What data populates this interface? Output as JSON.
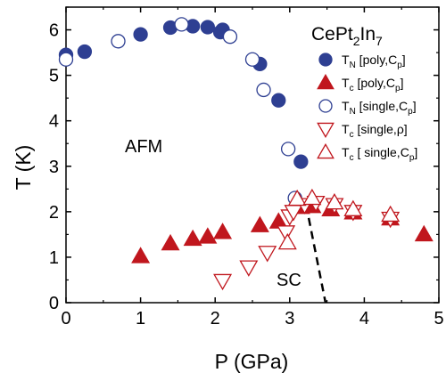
{
  "chart_data": {
    "type": "scatter",
    "title_parts": {
      "base": "CePt",
      "sub1": "2",
      "mid": "In",
      "sub2": "7"
    },
    "xlabel": "P (GPa)",
    "ylabel": "T (K)",
    "xlim": [
      0,
      5
    ],
    "ylim": [
      0,
      6.5
    ],
    "xticks": [
      0,
      1,
      2,
      3,
      4,
      5
    ],
    "yticks": [
      0,
      1,
      2,
      3,
      4,
      5,
      6
    ],
    "xtick_labels": [
      "0",
      "1",
      "2",
      "3",
      "4",
      "5"
    ],
    "ytick_labels": [
      "0",
      "1",
      "2",
      "3",
      "4",
      "5",
      "6"
    ],
    "annotations": [
      {
        "text": "AFM",
        "x": 0.9,
        "y": 3.9
      },
      {
        "text": "SC",
        "x": 3.15,
        "y": 0.55
      }
    ],
    "dashed_line": [
      [
        3.22,
        2.15
      ],
      [
        3.48,
        0.0
      ]
    ],
    "colors": {
      "blue": "#2e3f92",
      "red": "#c0161d"
    },
    "legend_position": "top-right",
    "series": [
      {
        "name": "T",
        "name_sub": "N",
        "name_rest": " [poly,C",
        "name_rest_sub": "p",
        "name_end": "]",
        "marker": "circle",
        "filled": true,
        "color": "#2e3f92",
        "points": [
          [
            0.0,
            5.45
          ],
          [
            0.25,
            5.52
          ],
          [
            1.0,
            5.9
          ],
          [
            1.4,
            6.05
          ],
          [
            1.7,
            6.08
          ],
          [
            1.9,
            6.06
          ],
          [
            2.07,
            5.95
          ],
          [
            2.1,
            6.0
          ],
          [
            2.6,
            5.25
          ],
          [
            2.85,
            4.45
          ],
          [
            3.15,
            3.1
          ]
        ]
      },
      {
        "name": "T",
        "name_sub": "c",
        "name_rest": " [poly,C",
        "name_rest_sub": "p",
        "name_end": "]",
        "marker": "triangle-up",
        "filled": true,
        "color": "#c0161d",
        "points": [
          [
            1.0,
            1.02
          ],
          [
            1.4,
            1.3
          ],
          [
            1.7,
            1.4
          ],
          [
            1.9,
            1.45
          ],
          [
            2.1,
            1.55
          ],
          [
            2.6,
            1.7
          ],
          [
            2.85,
            1.78
          ],
          [
            3.15,
            2.1
          ],
          [
            3.3,
            2.12
          ],
          [
            3.55,
            2.05
          ],
          [
            3.85,
            1.98
          ],
          [
            4.35,
            1.85
          ],
          [
            4.8,
            1.5
          ]
        ]
      },
      {
        "name": "T",
        "name_sub": "N",
        "name_rest": " [single,C",
        "name_rest_sub": "p",
        "name_end": "]",
        "marker": "circle",
        "filled": false,
        "color": "#2e3f92",
        "points": [
          [
            0.0,
            5.35
          ],
          [
            0.7,
            5.75
          ],
          [
            1.55,
            6.12
          ],
          [
            2.2,
            5.85
          ],
          [
            2.5,
            5.35
          ],
          [
            2.65,
            4.68
          ],
          [
            2.98,
            3.38
          ],
          [
            3.07,
            2.3
          ]
        ]
      },
      {
        "name": "T",
        "name_sub": "c",
        "name_rest": " [single,",
        "name_rest_sub": "",
        "name_end": "ρ]",
        "marker": "triangle-down",
        "filled": false,
        "color": "#c0161d",
        "points": [
          [
            2.1,
            0.48
          ],
          [
            2.45,
            0.78
          ],
          [
            2.7,
            1.1
          ],
          [
            2.95,
            1.55
          ],
          [
            3.0,
            1.9
          ],
          [
            3.05,
            2.0
          ],
          [
            3.2,
            2.15
          ],
          [
            3.35,
            2.2
          ],
          [
            3.6,
            2.15
          ],
          [
            3.85,
            2.0
          ],
          [
            4.35,
            1.85
          ]
        ]
      },
      {
        "name": "T",
        "name_sub": "c",
        "name_rest": " [ single,C",
        "name_rest_sub": "p",
        "name_end": "]",
        "marker": "triangle-up",
        "filled": false,
        "color": "#c0161d",
        "points": [
          [
            2.97,
            1.32
          ],
          [
            3.1,
            2.28
          ],
          [
            3.3,
            2.3
          ],
          [
            3.6,
            2.2
          ],
          [
            3.85,
            2.05
          ],
          [
            4.35,
            1.93
          ]
        ]
      }
    ]
  }
}
